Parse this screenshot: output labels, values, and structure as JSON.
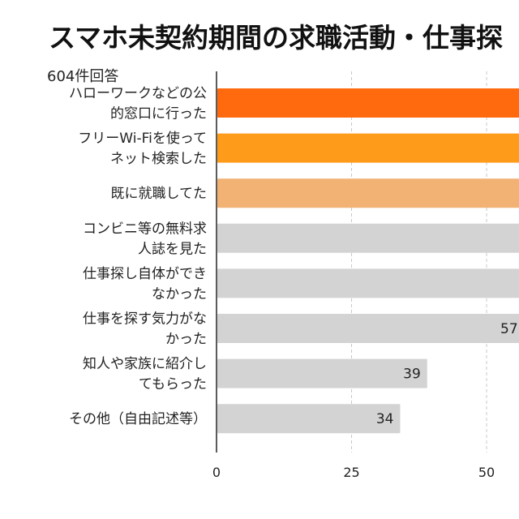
{
  "chart_data": {
    "type": "bar",
    "orientation": "horizontal",
    "title": "スマホ未契約期間の求職活動・仕事探",
    "note": "604件回答",
    "categories": [
      [
        "ハローワークなどの公",
        "的窓口に行った"
      ],
      [
        "フリーWi-Fiを使って",
        "ネット検索した"
      ],
      [
        "既に就職してた"
      ],
      [
        "コンビニ等の無料求",
        "人誌を見た"
      ],
      [
        "仕事探し自体ができ",
        "なかった"
      ],
      [
        "仕事を探す気力がな",
        "かった"
      ],
      [
        "知人や家族に紹介し",
        "てもらった"
      ],
      [
        "その他（自由記述等）"
      ]
    ],
    "values": [
      null,
      null,
      null,
      null,
      null,
      57,
      39,
      34
    ],
    "value_labels": [
      "",
      "",
      "",
      "",
      "",
      "57",
      "39",
      "34"
    ],
    "bar_colors": [
      "#ff6a0e",
      "#ff9b1a",
      "#f2b273",
      "#d3d3d3",
      "#d3d3d3",
      "#d3d3d3",
      "#d3d3d3",
      "#d3d3d3"
    ],
    "xticks": [
      "0",
      "25",
      "50"
    ],
    "xlim": [
      0,
      56
    ],
    "grid": true,
    "xlabel": "",
    "ylabel": ""
  }
}
